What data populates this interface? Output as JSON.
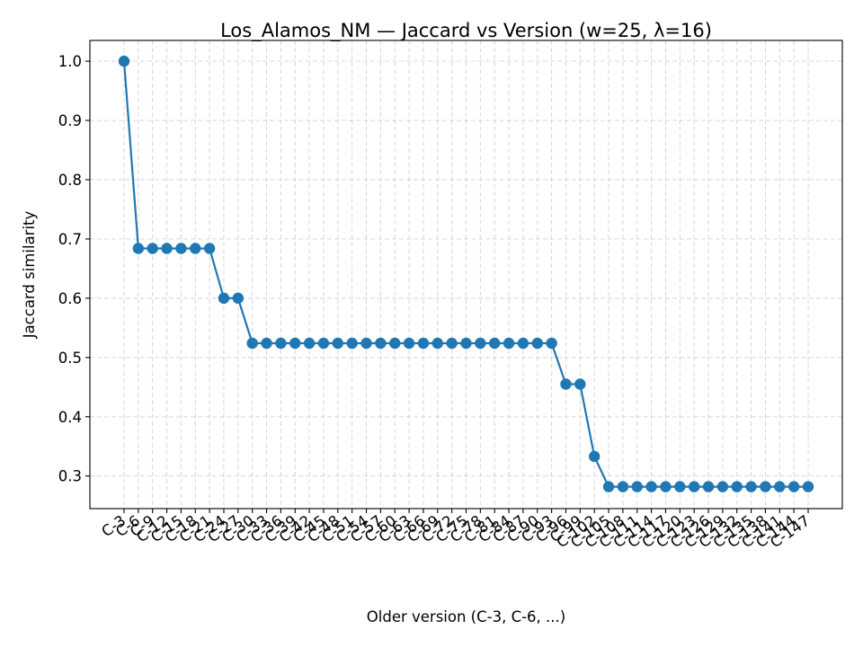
{
  "chart_data": {
    "type": "line",
    "title": "Los_Alamos_NM — Jaccard vs Version (w=25, λ=16)",
    "xlabel": "Older version (C-3, C-6, ...)",
    "ylabel": "Jaccard similarity",
    "ylim": [
      0.245,
      1.035
    ],
    "yticks": [
      "0.3",
      "0.4",
      "0.5",
      "0.6",
      "0.7",
      "0.8",
      "0.9",
      "1.0"
    ],
    "grid": true,
    "series_color": "#1f77b4",
    "categories": [
      "C-3",
      "C-6",
      "C-9",
      "C-12",
      "C-15",
      "C-18",
      "C-21",
      "C-24",
      "C-27",
      "C-30",
      "C-33",
      "C-36",
      "C-39",
      "C-42",
      "C-45",
      "C-48",
      "C-51",
      "C-54",
      "C-57",
      "C-60",
      "C-63",
      "C-66",
      "C-69",
      "C-72",
      "C-75",
      "C-78",
      "C-81",
      "C-84",
      "C-87",
      "C-90",
      "C-93",
      "C-96",
      "C-99",
      "C-102",
      "C-105",
      "C-108",
      "C-111",
      "C-114",
      "C-117",
      "C-120",
      "C-123",
      "C-126",
      "C-129",
      "C-132",
      "C-135",
      "C-138",
      "C-141",
      "C-144",
      "C-147"
    ],
    "values": [
      1.0,
      0.684,
      0.684,
      0.684,
      0.684,
      0.684,
      0.684,
      0.6,
      0.6,
      0.524,
      0.524,
      0.524,
      0.524,
      0.524,
      0.524,
      0.524,
      0.524,
      0.524,
      0.524,
      0.524,
      0.524,
      0.524,
      0.524,
      0.524,
      0.524,
      0.524,
      0.524,
      0.524,
      0.524,
      0.524,
      0.524,
      0.455,
      0.455,
      0.333,
      0.282,
      0.282,
      0.282,
      0.282,
      0.282,
      0.282,
      0.282,
      0.282,
      0.282,
      0.282,
      0.282,
      0.282,
      0.282,
      0.282,
      0.282
    ]
  }
}
